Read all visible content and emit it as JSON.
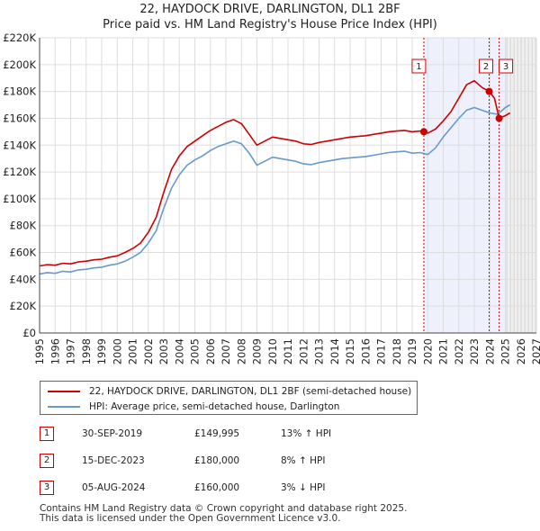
{
  "title_line1": "22, HAYDOCK DRIVE, DARLINGTON, DL1 2BF",
  "title_line2": "Price paid vs. HM Land Registry's House Price Index (HPI)",
  "legend": {
    "property_label": "22, HAYDOCK DRIVE, DARLINGTON, DL1 2BF (semi-detached house)",
    "hpi_label": "HPI: Average price, semi-detached house, Darlington"
  },
  "transactions": [
    {
      "num": "1",
      "date": "30-SEP-2019",
      "price": "£149,995",
      "hpi_rel": "13% ↑ HPI"
    },
    {
      "num": "2",
      "date": "15-DEC-2023",
      "price": "£180,000",
      "hpi_rel": "8% ↑ HPI"
    },
    {
      "num": "3",
      "date": "05-AUG-2024",
      "price": "£160,000",
      "hpi_rel": "3% ↓ HPI"
    }
  ],
  "footer": {
    "line1": "Contains HM Land Registry data © Crown copyright and database right 2025.",
    "line2": "This data is licensed under the Open Government Licence v3.0."
  },
  "colors": {
    "property": "#cc0000",
    "hpi": "#6699cc",
    "shade": "#eef0fb",
    "grid": "#dddddd"
  },
  "chart_data": {
    "type": "line",
    "title": "22, HAYDOCK DRIVE, DARLINGTON, DL1 2BF — Price paid vs. HM Land Registry's House Price Index (HPI)",
    "xlabel": "",
    "ylabel": "",
    "xlim": [
      1995,
      2027
    ],
    "ylim": [
      0,
      220000
    ],
    "x_ticks": [
      1995,
      1996,
      1997,
      1998,
      1999,
      2000,
      2001,
      2002,
      2003,
      2004,
      2005,
      2006,
      2007,
      2008,
      2009,
      2010,
      2011,
      2012,
      2013,
      2014,
      2015,
      2016,
      2017,
      2018,
      2019,
      2020,
      2021,
      2022,
      2023,
      2024,
      2025,
      2026,
      2027
    ],
    "y_ticks": [
      0,
      20000,
      40000,
      60000,
      80000,
      100000,
      120000,
      140000,
      160000,
      180000,
      200000,
      220000
    ],
    "y_tick_labels": [
      "£0",
      "£20K",
      "£40K",
      "£60K",
      "£80K",
      "£100K",
      "£120K",
      "£140K",
      "£160K",
      "£180K",
      "£200K",
      "£220K"
    ],
    "highlight_range": [
      2019.75,
      2025.5
    ],
    "forecast_start": 2025.1,
    "series": [
      {
        "name": "22, HAYDOCK DRIVE, DARLINGTON, DL1 2BF (semi-detached house)",
        "x": [
          1995,
          1995.5,
          1996,
          1996.5,
          1997,
          1997.5,
          1998,
          1998.5,
          1999,
          1999.5,
          2000,
          2000.5,
          2001,
          2001.5,
          2002,
          2002.5,
          2003,
          2003.5,
          2004,
          2004.5,
          2005,
          2005.5,
          2006,
          2006.5,
          2007,
          2007.5,
          2008,
          2008.5,
          2009,
          2009.5,
          2010,
          2010.5,
          2011,
          2011.5,
          2012,
          2012.5,
          2013,
          2013.5,
          2014,
          2014.5,
          2015,
          2015.5,
          2016,
          2016.5,
          2017,
          2017.5,
          2018,
          2018.5,
          2019,
          2019.5,
          2019.75,
          2020,
          2020.5,
          2021,
          2021.5,
          2022,
          2022.5,
          2023,
          2023.5,
          2023.96,
          2024.3,
          2024.6,
          2025,
          2025.3
        ],
        "values": [
          50000,
          51000,
          50500,
          52000,
          51500,
          53000,
          53500,
          54500,
          55000,
          56500,
          57500,
          60000,
          63000,
          67000,
          75000,
          86000,
          105000,
          122000,
          132000,
          139000,
          143000,
          147000,
          151000,
          154000,
          157000,
          159000,
          156000,
          148000,
          140000,
          143000,
          146000,
          145000,
          144000,
          143000,
          141000,
          140500,
          142000,
          143000,
          144000,
          145000,
          146000,
          146500,
          147000,
          148000,
          149000,
          150000,
          150500,
          151000,
          150000,
          150500,
          149995,
          149000,
          152000,
          158000,
          165000,
          175000,
          185000,
          188000,
          183000,
          180000,
          175000,
          160000,
          162000,
          164000
        ]
      },
      {
        "name": "HPI: Average price, semi-detached house, Darlington",
        "x": [
          1995,
          1995.5,
          1996,
          1996.5,
          1997,
          1997.5,
          1998,
          1998.5,
          1999,
          1999.5,
          2000,
          2000.5,
          2001,
          2001.5,
          2002,
          2002.5,
          2003,
          2003.5,
          2004,
          2004.5,
          2005,
          2005.5,
          2006,
          2006.5,
          2007,
          2007.5,
          2008,
          2008.5,
          2009,
          2009.5,
          2010,
          2010.5,
          2011,
          2011.5,
          2012,
          2012.5,
          2013,
          2013.5,
          2014,
          2014.5,
          2015,
          2015.5,
          2016,
          2016.5,
          2017,
          2017.5,
          2018,
          2018.5,
          2019,
          2019.5,
          2020,
          2020.5,
          2021,
          2021.5,
          2022,
          2022.5,
          2023,
          2023.5,
          2024,
          2024.5,
          2025,
          2025.3
        ],
        "values": [
          44000,
          45000,
          44500,
          46000,
          45500,
          47000,
          47500,
          48500,
          49000,
          50500,
          51500,
          53500,
          56500,
          60000,
          67000,
          76000,
          93000,
          108000,
          118000,
          125000,
          129000,
          132000,
          136000,
          139000,
          141000,
          143000,
          141000,
          134000,
          125000,
          128000,
          131000,
          130000,
          129000,
          128000,
          126000,
          125500,
          127000,
          128000,
          129000,
          130000,
          130500,
          131000,
          131500,
          132500,
          133500,
          134500,
          135000,
          135500,
          134000,
          134500,
          133000,
          138000,
          146000,
          153000,
          160000,
          166000,
          168000,
          166000,
          164000,
          163000,
          168000,
          170000
        ]
      }
    ],
    "markers": [
      {
        "label": "1",
        "x": 2019.75,
        "y": 149995
      },
      {
        "label": "2",
        "x": 2023.96,
        "y": 180000
      },
      {
        "label": "3",
        "x": 2024.6,
        "y": 160000
      }
    ]
  }
}
